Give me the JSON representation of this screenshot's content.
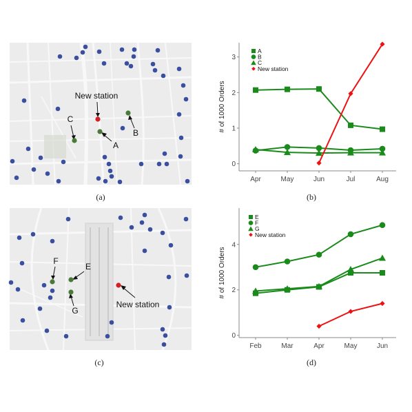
{
  "figure": {
    "caption_a": "(a)",
    "caption_b": "(b)",
    "caption_c": "(c)",
    "caption_d": "(d)"
  },
  "maps": [
    {
      "id": "a",
      "labels": {
        "new_station": "New station",
        "A": "A",
        "B": "B",
        "C": "C"
      }
    },
    {
      "id": "c",
      "labels": {
        "new_station": "New station",
        "E": "E",
        "F": "F",
        "G": "G"
      }
    }
  ],
  "colors": {
    "existing": "#3a4fa0",
    "candidate": "#4a7a3a",
    "new": "#d42020",
    "green_series": "#1a8a1a",
    "red_series": "#ee1111",
    "map_bg": "#ececec",
    "road": "#f8f8f8"
  },
  "chart_data": [
    {
      "type": "line",
      "panel": "b",
      "categories": [
        "Apr",
        "May",
        "Jun",
        "Jul",
        "Aug"
      ],
      "ylabel": "# of 1000 Orders",
      "ylim": [
        -0.2,
        3.4
      ],
      "yticks": [
        0,
        1,
        2,
        3
      ],
      "legend_position": "top-left",
      "series": [
        {
          "name": "A",
          "marker": "square",
          "color": "#1a8a1a",
          "values": [
            2.07,
            2.09,
            2.1,
            1.08,
            0.97
          ]
        },
        {
          "name": "B",
          "marker": "circle",
          "color": "#1a8a1a",
          "values": [
            0.37,
            0.47,
            0.44,
            0.38,
            0.42
          ]
        },
        {
          "name": "C",
          "marker": "triangle",
          "color": "#1a8a1a",
          "values": [
            0.4,
            0.32,
            0.3,
            0.31,
            0.31
          ]
        },
        {
          "name": "New station",
          "marker": "diamond",
          "color": "#ee1111",
          "values": [
            null,
            null,
            0.02,
            1.97,
            3.36
          ]
        }
      ]
    },
    {
      "type": "line",
      "panel": "d",
      "categories": [
        "Feb",
        "Mar",
        "Apr",
        "May",
        "Jun"
      ],
      "ylabel": "# of 1000 Orders",
      "ylim": [
        -0.1,
        5.6
      ],
      "yticks": [
        0,
        2,
        4
      ],
      "legend_position": "top-left",
      "series": [
        {
          "name": "E",
          "marker": "square",
          "color": "#1a8a1a",
          "values": [
            1.85,
            2.0,
            2.13,
            2.75,
            2.75
          ]
        },
        {
          "name": "F",
          "marker": "circle",
          "color": "#1a8a1a",
          "values": [
            3.0,
            3.25,
            3.55,
            4.45,
            4.85
          ]
        },
        {
          "name": "G",
          "marker": "triangle",
          "color": "#1a8a1a",
          "values": [
            1.95,
            2.05,
            2.15,
            2.9,
            3.4
          ]
        },
        {
          "name": "New station",
          "marker": "diamond",
          "color": "#ee1111",
          "values": [
            null,
            null,
            0.4,
            1.05,
            1.4
          ]
        }
      ]
    }
  ]
}
